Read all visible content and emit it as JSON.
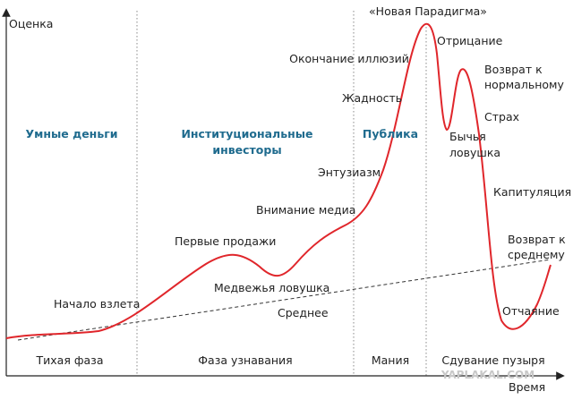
{
  "axes": {
    "y_label": "Оценка",
    "x_label": "Время"
  },
  "phases": [
    "Тихая фаза",
    "Фаза узнавания",
    "Мания",
    "Сдувание пузыря"
  ],
  "groups": [
    [
      "Умные деньги"
    ],
    [
      "Институциональные",
      "инвесторы"
    ],
    [
      "Публика"
    ]
  ],
  "stages": {
    "takeoff": "Начало взлета",
    "first_sales": "Первые продажи",
    "bear_trap": "Медвежья ловушка",
    "media": "Внимание медиа",
    "enthusiasm": "Энтузиазм",
    "greed": "Жадность",
    "delusion": "Окончание иллюзий",
    "new_paradigm": "«Новая Парадигма»",
    "denial": "Отрицание",
    "return_normal": [
      "Возврат к",
      "нормальному"
    ],
    "fear": "Страх",
    "bull_trap": [
      "Бычья",
      "ловушка"
    ],
    "capitulation": "Капитуляция",
    "return_mean": [
      "Возврат к",
      "среднему"
    ],
    "despair": "Отчаяние"
  },
  "mean_label": "Среднее",
  "watermark": "YAPLAKAL.COM"
}
